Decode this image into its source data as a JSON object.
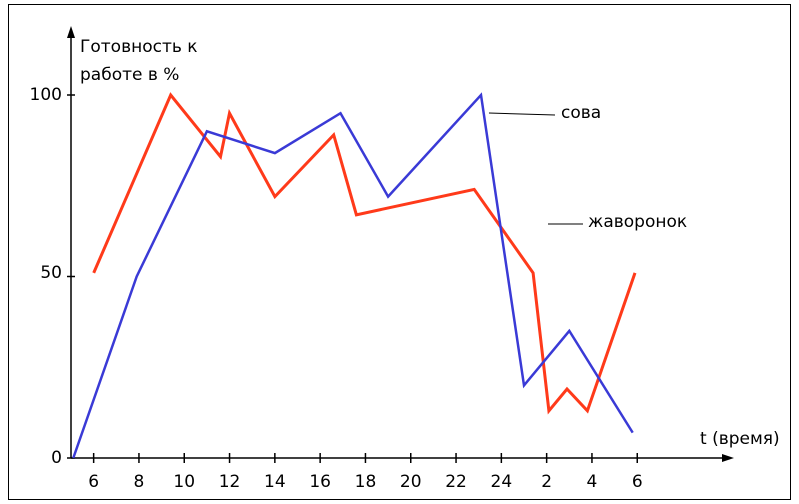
{
  "chart_data": {
    "type": "line",
    "ylabel": "Готовность к работе в %",
    "xlabel": "t (время)",
    "y_ticks": [
      "0",
      "50",
      "100"
    ],
    "x_ticks": [
      "6",
      "8",
      "10",
      "12",
      "14",
      "16",
      "18",
      "20",
      "22",
      "24",
      "2",
      "4",
      "6"
    ],
    "ylim": [
      0,
      100
    ],
    "xlim": [
      5,
      31
    ],
    "grid": false,
    "series": [
      {
        "name": "сова",
        "color": "#3a3ad6",
        "points": [
          [
            5.1,
            0
          ],
          [
            7.9,
            50
          ],
          [
            11.0,
            90
          ],
          [
            14.0,
            84
          ],
          [
            16.9,
            95
          ],
          [
            19.0,
            72
          ],
          [
            23.1,
            100
          ],
          [
            25.0,
            20
          ],
          [
            27.0,
            35
          ],
          [
            29.8,
            7
          ]
        ]
      },
      {
        "name": "жаворонок",
        "color": "#ff3a1a",
        "points": [
          [
            6.0,
            51
          ],
          [
            9.4,
            100
          ],
          [
            11.6,
            83
          ],
          [
            12.0,
            95
          ],
          [
            14.0,
            72
          ],
          [
            16.6,
            89
          ],
          [
            17.6,
            67
          ],
          [
            22.8,
            74
          ],
          [
            25.4,
            51
          ],
          [
            26.1,
            13
          ],
          [
            26.9,
            19
          ],
          [
            27.8,
            13
          ],
          [
            29.9,
            51
          ]
        ]
      }
    ]
  }
}
